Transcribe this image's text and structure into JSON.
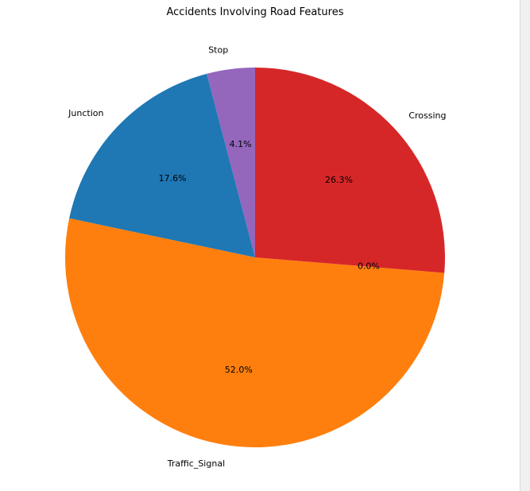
{
  "chart_data": {
    "type": "pie",
    "title": "Accidents Involving Road Features",
    "start_angle_deg": 90,
    "direction": "counterclockwise",
    "slices": [
      {
        "label": "Stop",
        "value": 4.1,
        "pct_label": "4.1%",
        "color": "#9467bd"
      },
      {
        "label": "Junction",
        "value": 17.6,
        "pct_label": "17.6%",
        "color": "#1f77b4"
      },
      {
        "label": "Traffic_Signal",
        "value": 52.0,
        "pct_label": "52.0%",
        "color": "#ff7f0e"
      },
      {
        "label": "",
        "value": 0.0,
        "pct_label": "0.0%",
        "color": "#2ca02c"
      },
      {
        "label": "Crossing",
        "value": 26.3,
        "pct_label": "26.3%",
        "color": "#d62728"
      }
    ]
  }
}
